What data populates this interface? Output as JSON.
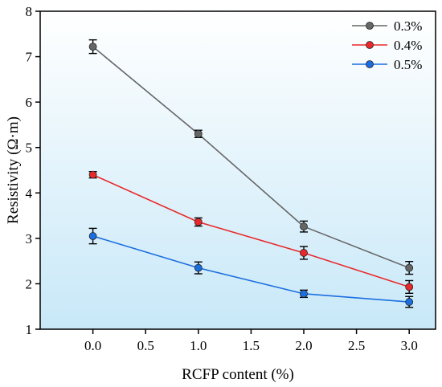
{
  "chart_data": {
    "type": "line",
    "xlabel": "RCFP content (%)",
    "ylabel": "Resistivity (Ω·m)",
    "xlim": [
      -0.5,
      3.25
    ],
    "ylim": [
      1,
      8
    ],
    "xticks": [
      0.0,
      0.5,
      1.0,
      1.5,
      2.0,
      2.5,
      3.0
    ],
    "xtick_labels": [
      "0.0",
      "0.5",
      "1.0",
      "1.5",
      "2.0",
      "2.5",
      "3.0"
    ],
    "yticks": [
      1,
      2,
      3,
      4,
      5,
      6,
      7,
      8
    ],
    "ytick_labels": [
      "1",
      "2",
      "3",
      "4",
      "5",
      "6",
      "7",
      "8"
    ],
    "grid": false,
    "legend_position": "top-right",
    "background_gradient": [
      "#ffffff",
      "#c8e8f8"
    ],
    "x": [
      0,
      1,
      2,
      3
    ],
    "series": [
      {
        "name": "0.3%",
        "values": [
          7.22,
          5.3,
          3.26,
          2.35
        ],
        "errors": [
          0.15,
          0.08,
          0.12,
          0.14
        ],
        "color": "#666666"
      },
      {
        "name": "0.4%",
        "values": [
          4.4,
          3.36,
          2.68,
          1.93
        ],
        "errors": [
          0.07,
          0.09,
          0.14,
          0.14
        ],
        "color": "#e8282a"
      },
      {
        "name": "0.5%",
        "values": [
          3.05,
          2.35,
          1.78,
          1.6
        ],
        "errors": [
          0.17,
          0.13,
          0.08,
          0.12
        ],
        "color": "#1a6ee0"
      }
    ]
  }
}
